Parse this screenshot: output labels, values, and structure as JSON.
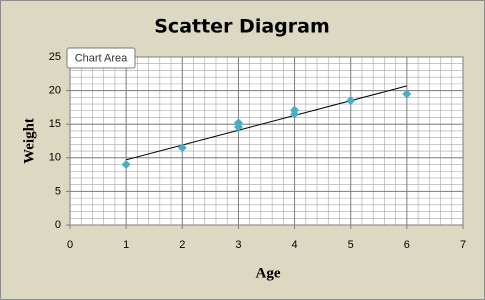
{
  "chart_data": {
    "type": "scatter",
    "title": "Scatter Diagram",
    "tooltip": "Chart Area",
    "x_label": "Age",
    "y_label": "Weight",
    "series": [
      {
        "color": "#4bacc6",
        "x": [
          1,
          2,
          3,
          3,
          4,
          4,
          5,
          6
        ],
        "values": [
          9,
          11.5,
          14.6,
          15.2,
          16.5,
          17.1,
          18.5,
          19.5
        ]
      }
    ],
    "trendline": {
      "color": "#000000",
      "x": [
        1,
        6
      ],
      "values": [
        9.7,
        20.7
      ]
    },
    "xlim": [
      0,
      7
    ],
    "xticks": [
      0,
      1,
      2,
      3,
      4,
      5,
      6,
      7
    ],
    "ylim": [
      0,
      25
    ],
    "yticks": [
      0,
      5,
      10,
      15,
      20,
      25
    ],
    "grid": true,
    "minor_grid": {
      "x": 0.2,
      "y": 1
    }
  }
}
